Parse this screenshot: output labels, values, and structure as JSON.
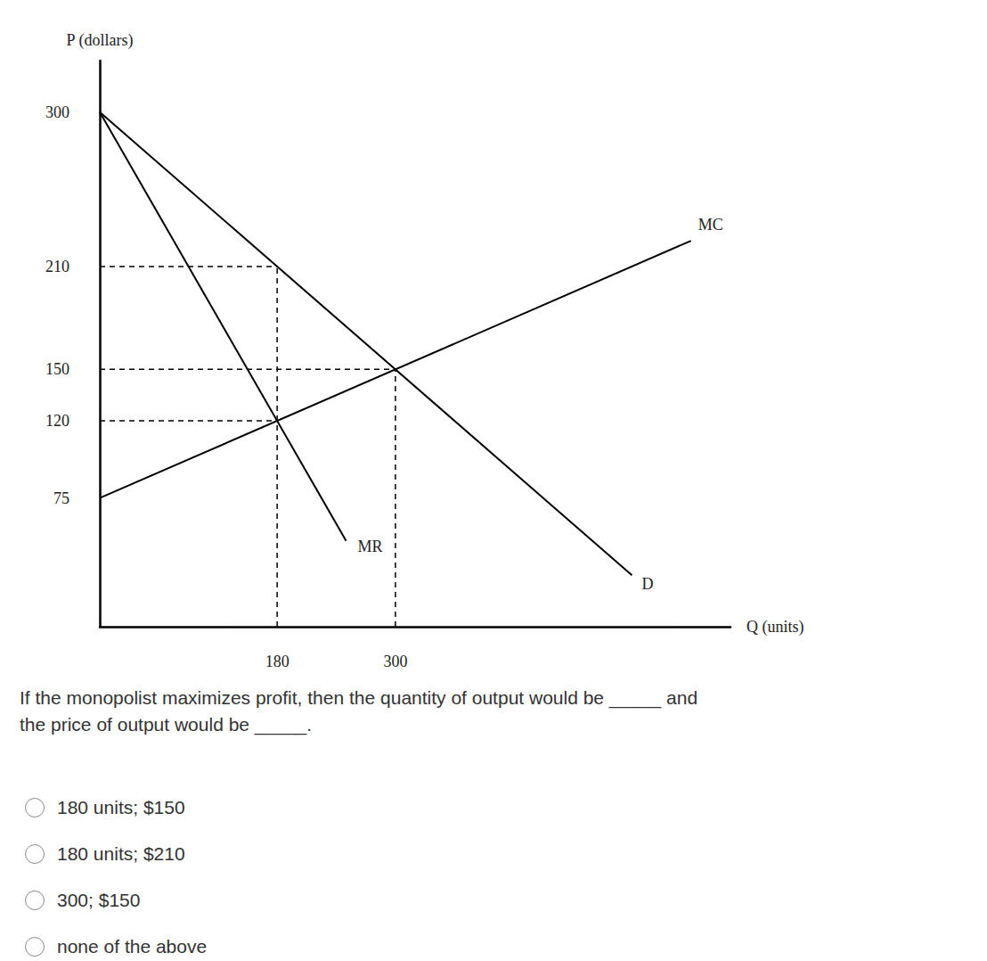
{
  "chart_data": {
    "type": "line",
    "x_label": "Q (units)",
    "y_label": "P (dollars)",
    "xlim": [
      0,
      640
    ],
    "ylim": [
      0,
      330
    ],
    "xticks": [
      180,
      300
    ],
    "yticks": [
      75,
      120,
      150,
      210,
      300
    ],
    "grid": false,
    "tick_labels": true,
    "series": [
      {
        "name": "D",
        "color": "#000000",
        "line_style": "solid",
        "x": [
          0,
          540
        ],
        "values": [
          300,
          30
        ]
      },
      {
        "name": "MR",
        "color": "#000000",
        "line_style": "solid",
        "x": [
          0,
          250
        ],
        "values": [
          300,
          50
        ]
      },
      {
        "name": "MC",
        "color": "#000000",
        "line_style": "solid",
        "x": [
          0,
          600
        ],
        "values": [
          75,
          225
        ]
      },
      {
        "color": "#000000",
        "line_style": "dashed",
        "x": [
          0,
          180
        ],
        "values": [
          210,
          210
        ]
      },
      {
        "color": "#000000",
        "line_style": "dashed",
        "x": [
          0,
          300
        ],
        "values": [
          150,
          150
        ]
      },
      {
        "color": "#000000",
        "line_style": "dashed",
        "x": [
          0,
          180
        ],
        "values": [
          120,
          120
        ]
      },
      {
        "color": "#000000",
        "line_style": "dashed",
        "x": [
          180,
          180
        ],
        "values": [
          0,
          210
        ]
      },
      {
        "color": "#000000",
        "line_style": "dashed",
        "x": [
          300,
          300
        ],
        "values": [
          0,
          150
        ]
      }
    ]
  },
  "question": [
    "If the monopolist maximizes profit, then the quantity of output would be _____ and",
    "the price of output would be _____."
  ],
  "options": [
    "180 units; $150",
    "180 units; $210",
    "300; $150",
    "none of the above"
  ]
}
